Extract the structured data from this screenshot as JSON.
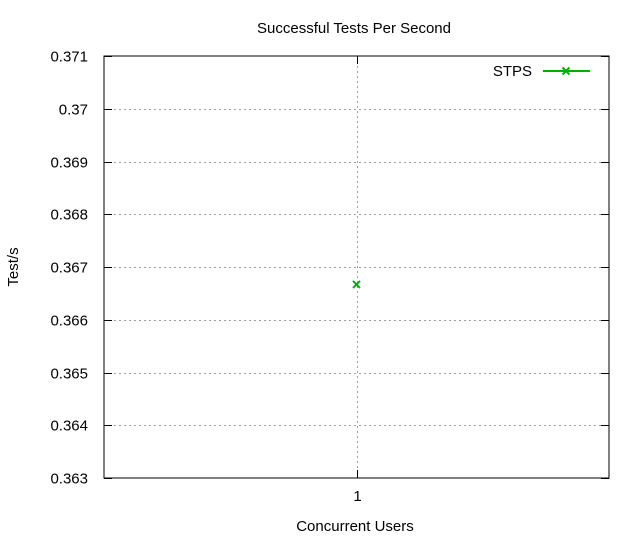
{
  "chart_data": {
    "type": "scatter",
    "title": "Successful Tests Per Second",
    "xlabel": "Concurrent Users",
    "ylabel": "Test/s",
    "x_ticks": [
      "1"
    ],
    "y_ticks": [
      "0.363",
      "0.364",
      "0.365",
      "0.366",
      "0.367",
      "0.368",
      "0.369",
      "0.37",
      "0.371"
    ],
    "ylim": [
      0.363,
      0.371
    ],
    "xlim": [
      0,
      2
    ],
    "grid": true,
    "legend_position": "top-right",
    "series": [
      {
        "name": "STPS",
        "color": "#00b000",
        "marker": "x",
        "points": [
          {
            "x": 1,
            "y": 0.36667
          }
        ]
      }
    ]
  }
}
